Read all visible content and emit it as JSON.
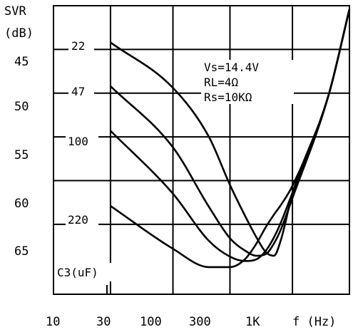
{
  "chart_data": {
    "type": "line",
    "ylabel_line1": "SVR",
    "ylabel_line2": "(dB)",
    "y_ticks": [
      "45",
      "50",
      "55",
      "60",
      "65"
    ],
    "x_ticks": [
      "10",
      "30",
      "100",
      "300",
      "1K",
      "f (Hz)"
    ],
    "xscale": "log",
    "xlim": [
      10,
      3000
    ],
    "ylim": [
      40,
      73
    ],
    "y_inverted": true,
    "grid": true,
    "condition_lines": [
      "Vs=14.4V",
      "RL=4Ω",
      "Rs=10KΩ"
    ],
    "legend_title": "C3(uF)",
    "series": [
      {
        "name": "22",
        "x": [
          30,
          100,
          200,
          300,
          400,
          500,
          600,
          700,
          800,
          1000,
          2000,
          3000
        ],
        "y": [
          44.2,
          49.4,
          55.0,
          60.5,
          64.0,
          66.5,
          68.2,
          68.6,
          66.8,
          61.5,
          50.3,
          40.4
        ]
      },
      {
        "name": "47",
        "x": [
          30,
          100,
          200,
          300,
          400,
          500,
          600,
          700,
          800,
          1000,
          2000,
          3000
        ],
        "y": [
          49.2,
          56.2,
          63.0,
          66.6,
          68.0,
          68.6,
          68.4,
          67.2,
          65.6,
          62.0,
          50.3,
          40.4
        ]
      },
      {
        "name": "100",
        "x": [
          30,
          100,
          200,
          300,
          400,
          500,
          600,
          700,
          800,
          1000,
          2000,
          3000
        ],
        "y": [
          54.3,
          61.5,
          66.9,
          68.7,
          69.2,
          69.0,
          68.0,
          66.5,
          64.8,
          61.4,
          50.3,
          40.4
        ]
      },
      {
        "name": "220",
        "x": [
          30,
          100,
          200,
          300,
          400,
          500,
          600,
          700,
          800,
          1000,
          2000,
          3000
        ],
        "y": [
          62.9,
          67.8,
          69.9,
          69.9,
          69.0,
          67.2,
          65.3,
          63.9,
          62.8,
          60.6,
          50.3,
          40.4
        ]
      }
    ]
  }
}
